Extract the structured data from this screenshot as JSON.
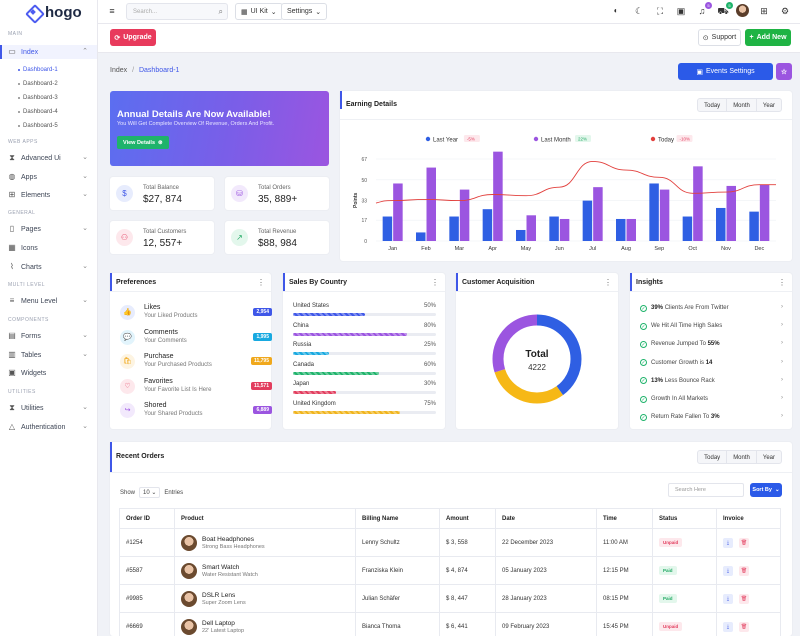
{
  "app": {
    "name": "hogo"
  },
  "sidebar": {
    "sections": [
      "Main",
      "Web Apps",
      "General",
      "Multi Level",
      "Components",
      "Utilities"
    ],
    "index": "Index",
    "dashboards": [
      "Dashboard-1",
      "Dashboard-2",
      "Dashboard-3",
      "Dashboard-4",
      "Dashboard-5"
    ],
    "web_apps": [
      "Advanced Ui",
      "Apps",
      "Elements"
    ],
    "general": [
      "Pages",
      "Icons",
      "Charts"
    ],
    "multi": [
      "Menu Level"
    ],
    "components": [
      "Forms",
      "Tables",
      "Widgets"
    ],
    "utilities": [
      "Utilities",
      "Authentication"
    ]
  },
  "topbar": {
    "search_placeholder": "Search...",
    "uikit": "UI Kit",
    "settings": "Settings",
    "notif_count": "5",
    "cart_count": "5"
  },
  "subbar": {
    "upgrade": "Upgrade",
    "support": "Support",
    "add_new": "Add New"
  },
  "breadcrumb": {
    "root": "Index",
    "sep": "/",
    "current": "Dashboard-1"
  },
  "events_button": "Events Settings",
  "banner": {
    "title": "Annual Details Are Now Available!",
    "subtitle": "You Will Get Complete Overview Of Revenue, Orders And Profit.",
    "button": "View Details"
  },
  "stats": [
    {
      "label": "Total Balance",
      "value": "$27, 874"
    },
    {
      "label": "Total Orders",
      "value": "35, 889+"
    },
    {
      "label": "Total Customers",
      "value": "12, 557+"
    },
    {
      "label": "Total Revenue",
      "value": "$88, 984"
    }
  ],
  "earning": {
    "title": "Earning Details",
    "ranges": [
      "Today",
      "Month",
      "Year"
    ]
  },
  "chart_data": {
    "type": "bar",
    "title": "Earning Details",
    "ylabel": "Points",
    "ylim": [
      0,
      67
    ],
    "yticks": [
      0,
      17,
      33,
      50,
      67
    ],
    "categories": [
      "Jan",
      "Feb",
      "Mar",
      "Apr",
      "May",
      "Jun",
      "Jul",
      "Aug",
      "Sep",
      "Oct",
      "Nov",
      "Dec"
    ],
    "legend": [
      {
        "name": "Last Year",
        "change": "-5%",
        "color": "#2f5fe3",
        "change_color": "#e23d5e"
      },
      {
        "name": "Last Month",
        "change": "22%",
        "color": "#9b55e0",
        "change_color": "#1fa862"
      },
      {
        "name": "Today",
        "change": "-10%",
        "color": "#e2403d",
        "change_color": "#e23d5e"
      }
    ],
    "series": [
      {
        "name": "Last Year",
        "values": [
          20,
          7,
          20,
          26,
          9,
          20,
          33,
          18,
          47,
          20,
          27,
          24
        ]
      },
      {
        "name": "Last Month",
        "values": [
          47,
          60,
          42,
          73,
          21,
          18,
          44,
          18,
          42,
          61,
          45,
          46
        ]
      },
      {
        "name": "Today",
        "values": [
          33,
          34,
          33,
          38,
          37,
          44,
          65,
          58,
          52,
          39,
          40,
          46
        ]
      }
    ]
  },
  "preferences": {
    "title": "Preferences",
    "items": [
      {
        "title": "Likes",
        "sub": "Your Liked Products",
        "badge": "2,954",
        "color": "#3f57e8",
        "bg": "#e7ecfd",
        "icon": "👍"
      },
      {
        "title": "Comments",
        "sub": "Your Comments",
        "badge": "1,995",
        "color": "#18a9e0",
        "bg": "#e2f4fc",
        "icon": "💬"
      },
      {
        "title": "Purchase",
        "sub": "Your Purchased Products",
        "badge": "11,795",
        "color": "#f0a81c",
        "bg": "#fdf4e2",
        "icon": "🛍"
      },
      {
        "title": "Favorites",
        "sub": "Your Favorite List Is Here",
        "badge": "11,571",
        "color": "#e23d5e",
        "bg": "#fde8ec",
        "icon": "♡"
      },
      {
        "title": "Shored",
        "sub": "Your Shared Products",
        "badge": "6,889",
        "color": "#9b55e0",
        "bg": "#f2e9fc",
        "icon": "↪"
      }
    ]
  },
  "countries": {
    "title": "Sales By Country",
    "items": [
      {
        "name": "United States",
        "pct": "50%",
        "value": 0.5,
        "color": "#3f57e8"
      },
      {
        "name": "China",
        "pct": "80%",
        "value": 0.8,
        "color": "#9b55e0"
      },
      {
        "name": "Russia",
        "pct": "25%",
        "value": 0.25,
        "color": "#18a9e0"
      },
      {
        "name": "Canada",
        "pct": "60%",
        "value": 0.6,
        "color": "#1fb36b"
      },
      {
        "name": "Japan",
        "pct": "30%",
        "value": 0.3,
        "color": "#e23d5e"
      },
      {
        "name": "United Kingdom",
        "pct": "75%",
        "value": 0.75,
        "color": "#f0b41c"
      }
    ]
  },
  "acquisition": {
    "title": "Customer Acquisition",
    "center_label": "Total",
    "center_value": "4222",
    "segments": [
      {
        "value": 0.4,
        "color": "#2f5fe3"
      },
      {
        "value": 0.3,
        "color": "#f6b816"
      },
      {
        "value": 0.3,
        "color": "#9b55e0"
      }
    ]
  },
  "insights": {
    "title": "Insights",
    "items": [
      {
        "bold": "39%",
        "text": "Clients Are From Twitter",
        "bold_first": true
      },
      {
        "bold": "",
        "text": "We Hit All Time High Sales",
        "bold_first": true
      },
      {
        "bold": "55%",
        "text": "Revenue Jumped To ",
        "bold_first": false
      },
      {
        "bold": "14",
        "text": "Customer Growth is ",
        "bold_first": false
      },
      {
        "bold": "13%",
        "text": "Less Bounce Rack",
        "bold_first": true
      },
      {
        "bold": "",
        "text": "Growth In All Markets",
        "bold_first": true
      },
      {
        "bold": "3%",
        "text": "Return Rate Fallen To ",
        "bold_first": false
      }
    ]
  },
  "orders": {
    "title": "Recent Orders",
    "ranges": [
      "Today",
      "Month",
      "Year"
    ],
    "show": "Show",
    "entries_value": "10",
    "entries": "Entries",
    "search_placeholder": "Search Here",
    "sort": "Sort By",
    "columns": [
      "Order ID",
      "Product",
      "Billing Name",
      "Amount",
      "Date",
      "Time",
      "Status",
      "Invoice"
    ],
    "rows": [
      {
        "id": "#1254",
        "product": "Boat Headphones",
        "sub": "Strong Bass Headphones",
        "name": "Lenny Schultz",
        "amount": "$ 3, 558",
        "date": "22 December 2023",
        "time": "11:00 AM",
        "status": "Unpaid"
      },
      {
        "id": "#5587",
        "product": "Smart Watch",
        "sub": "Water Resistant Watch",
        "name": "Franziska Klein",
        "amount": "$ 4, 874",
        "date": "05 January 2023",
        "time": "12:15 PM",
        "status": "Paid"
      },
      {
        "id": "#9985",
        "product": "DSLR Lens",
        "sub": "Super Zoom Lens",
        "name": "Julian Schäfer",
        "amount": "$ 8, 447",
        "date": "28 January 2023",
        "time": "08:15 PM",
        "status": "Paid"
      },
      {
        "id": "#6669",
        "product": "Dell Laptop",
        "sub": "22' Latest Laptop",
        "name": "Bianca Thoma",
        "amount": "$ 6, 441",
        "date": "09 February 2023",
        "time": "15:45 PM",
        "status": "Unpaid"
      }
    ]
  }
}
